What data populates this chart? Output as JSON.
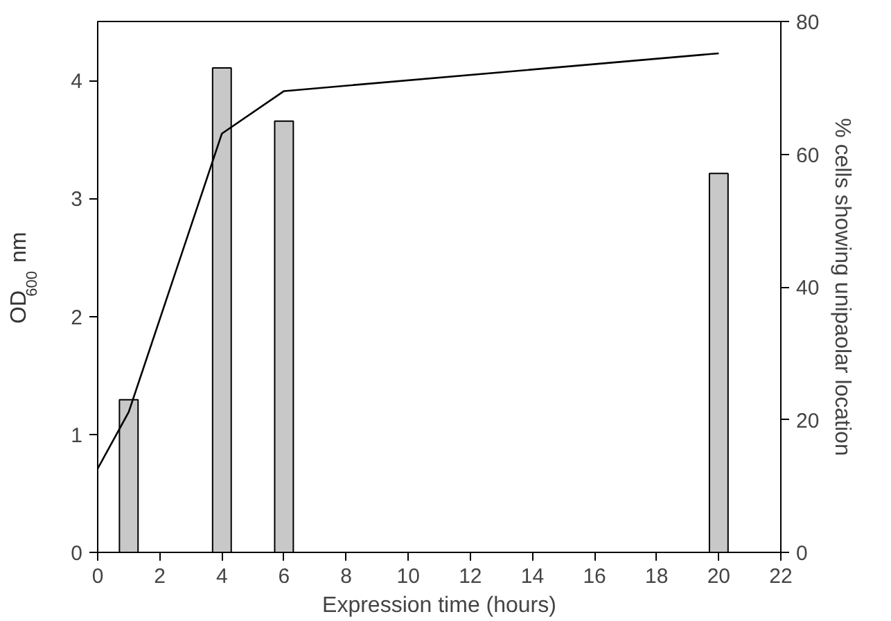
{
  "chart_data": {
    "type": "bar",
    "xlabel": "Expression time (hours)",
    "ylabel": "OD$_{600}$ nm",
    "y2label": "% cells showing unipaolar location",
    "xlim": [
      0,
      22
    ],
    "xticks": [
      0,
      2,
      4,
      6,
      8,
      10,
      12,
      14,
      16,
      18,
      20,
      22
    ],
    "ylim": [
      0,
      4.5
    ],
    "yticks": [
      0,
      1,
      2,
      3,
      4
    ],
    "y2lim": [
      0,
      80
    ],
    "y2ticks": [
      0,
      20,
      40,
      60,
      80
    ],
    "grid": false,
    "series": [
      {
        "axis": "y2",
        "color": "#c8c8c8",
        "x": [
          1,
          4,
          6,
          20
        ],
        "values": [
          23.0,
          73.0,
          65.0,
          57.1
        ]
      },
      {
        "type": "line",
        "axis": "y",
        "color": "#000000",
        "x": [
          0,
          1,
          4,
          6,
          20
        ],
        "values": [
          0.71,
          1.19,
          3.55,
          3.91,
          4.23
        ]
      }
    ]
  }
}
